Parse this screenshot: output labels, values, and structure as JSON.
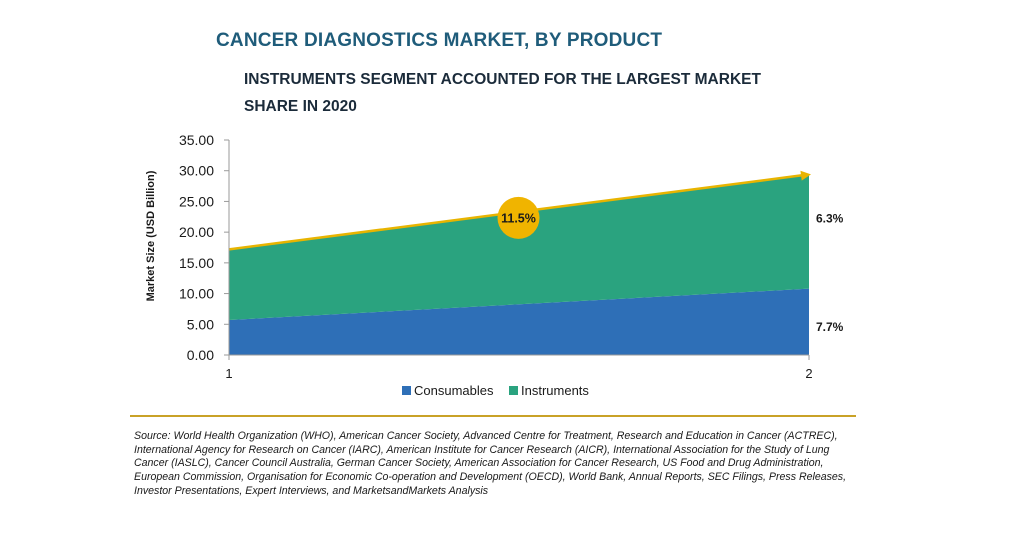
{
  "title": "CANCER DIAGNOSTICS MARKET, BY PRODUCT",
  "subtitle": "INSTRUMENTS SEGMENT ACCOUNTED FOR THE LARGEST MARKET SHARE IN 2020",
  "source": "Source: World Health Organization (WHO), American Cancer Society, Advanced Centre for Treatment, Research and Education in Cancer (ACTREC), International Agency for Research on Cancer (IARC), American Institute for Cancer Research (AICR), International Association for the Study of Lung Cancer (IASLC), Cancer Council Australia, German Cancer Society, American Association for Cancer Research, US Food and Drug Administration, European Commission, Organisation for Economic Co-operation and Development (OECD), World Bank, Annual Reports, SEC Filings, Press Releases, Investor Presentations, Expert Interviews, and MarketsandMarkets Analysis",
  "chart_data": {
    "type": "area",
    "stacked": true,
    "x": [
      1,
      2
    ],
    "series": [
      {
        "name": "Consumables",
        "values": [
          5.7,
          10.8
        ],
        "color": "#2e6fb7",
        "cagr_label": "7.7%"
      },
      {
        "name": "Instruments",
        "values": [
          11.5,
          18.6
        ],
        "color": "#2aa37f",
        "cagr_label": "6.3%"
      }
    ],
    "ylabel": "Market Size (USD Billion)",
    "xlabel": "",
    "ylim": [
      0,
      35
    ],
    "yticks": [
      "0.00",
      "5.00",
      "10.00",
      "15.00",
      "20.00",
      "25.00",
      "30.00",
      "35.00"
    ],
    "xticks": [
      "1",
      "2"
    ],
    "overall_cagr_label": "11.5%",
    "arrow_color": "#e8b400",
    "grid": false,
    "legend_position": "bottom"
  }
}
